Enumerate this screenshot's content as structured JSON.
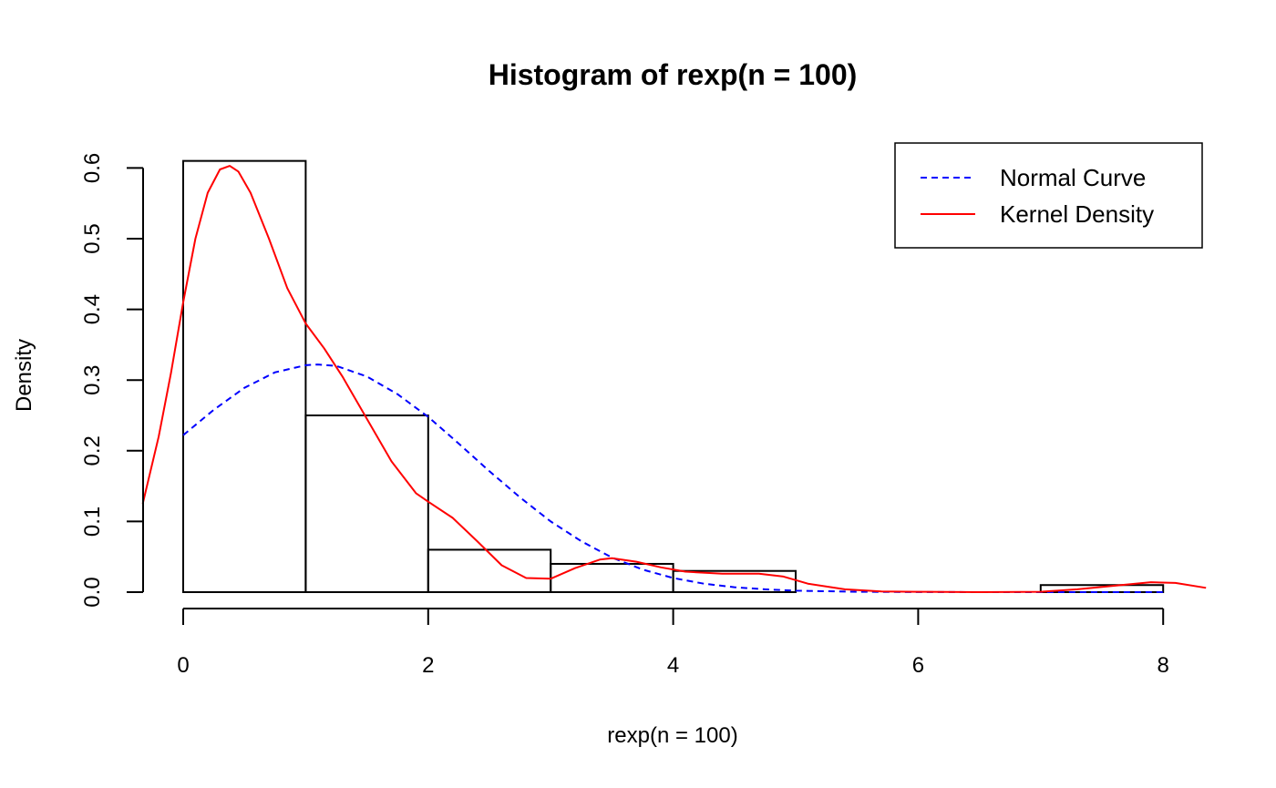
{
  "chart_data": {
    "type": "histogram",
    "title": "Histogram of rexp(n = 100)",
    "xlabel": "rexp(n = 100)",
    "ylabel": "Density",
    "xlim": [
      -0.33,
      8.35
    ],
    "ylim": [
      0,
      0.6
    ],
    "xticks": [
      0,
      2,
      4,
      6,
      8
    ],
    "yticks": [
      0.0,
      0.1,
      0.2,
      0.3,
      0.4,
      0.5,
      0.6
    ],
    "ytick_labels": [
      "0.0",
      "0.1",
      "0.2",
      "0.3",
      "0.4",
      "0.5",
      "0.6"
    ],
    "grid": false,
    "legend_position": "top-right",
    "bins": [
      {
        "x0": 0,
        "x1": 1,
        "density": 0.61
      },
      {
        "x0": 1,
        "x1": 2,
        "density": 0.25
      },
      {
        "x0": 2,
        "x1": 3,
        "density": 0.06
      },
      {
        "x0": 3,
        "x1": 4,
        "density": 0.04
      },
      {
        "x0": 4,
        "x1": 5,
        "density": 0.03
      },
      {
        "x0": 5,
        "x1": 6,
        "density": 0.0
      },
      {
        "x0": 6,
        "x1": 7,
        "density": 0.0
      },
      {
        "x0": 7,
        "x1": 8,
        "density": 0.01
      }
    ],
    "series": [
      {
        "name": "Normal Curve",
        "color": "#0000ff",
        "style": "dashed",
        "x": [
          0,
          0.25,
          0.5,
          0.75,
          1.0,
          1.1,
          1.25,
          1.5,
          1.75,
          2.0,
          2.25,
          2.5,
          2.75,
          3.0,
          3.25,
          3.5,
          3.75,
          4.0,
          4.25,
          4.5,
          4.75,
          5.0,
          5.5,
          6.0,
          7.0,
          8.0
        ],
        "y": [
          0.222,
          0.258,
          0.289,
          0.311,
          0.321,
          0.322,
          0.32,
          0.305,
          0.28,
          0.248,
          0.21,
          0.171,
          0.134,
          0.1,
          0.072,
          0.049,
          0.032,
          0.02,
          0.012,
          0.007,
          0.004,
          0.002,
          0.0005,
          0.0001,
          0.0,
          0.0
        ]
      },
      {
        "name": "Kernel Density",
        "color": "#ff0000",
        "style": "solid",
        "x": [
          -0.33,
          -0.2,
          -0.1,
          0.0,
          0.1,
          0.2,
          0.3,
          0.38,
          0.45,
          0.55,
          0.7,
          0.85,
          1.0,
          1.15,
          1.3,
          1.5,
          1.7,
          1.9,
          2.0,
          2.2,
          2.4,
          2.6,
          2.8,
          3.0,
          3.2,
          3.4,
          3.5,
          3.7,
          3.9,
          4.1,
          4.4,
          4.7,
          4.9,
          5.1,
          5.4,
          5.7,
          6.0,
          6.5,
          7.0,
          7.3,
          7.6,
          7.9,
          8.1,
          8.35
        ],
        "y": [
          0.125,
          0.22,
          0.31,
          0.41,
          0.5,
          0.565,
          0.598,
          0.603,
          0.595,
          0.565,
          0.5,
          0.43,
          0.38,
          0.345,
          0.305,
          0.245,
          0.185,
          0.14,
          0.128,
          0.105,
          0.072,
          0.038,
          0.02,
          0.019,
          0.034,
          0.046,
          0.048,
          0.043,
          0.035,
          0.029,
          0.026,
          0.026,
          0.022,
          0.012,
          0.004,
          0.001,
          0.0005,
          0.0,
          0.0005,
          0.004,
          0.009,
          0.014,
          0.013,
          0.006
        ]
      }
    ]
  }
}
